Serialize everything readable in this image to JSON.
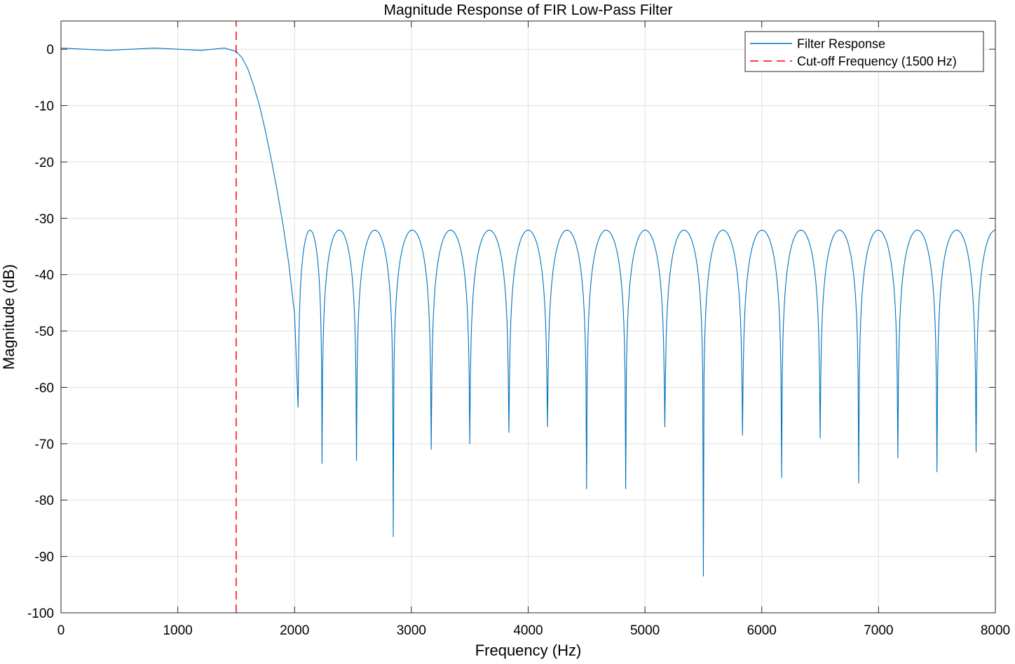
{
  "chart_data": {
    "type": "line",
    "title": "Magnitude Response of FIR Low-Pass Filter",
    "xlabel": "Frequency (Hz)",
    "ylabel": "Magnitude (dB)",
    "xlim": [
      0,
      8000
    ],
    "ylim": [
      -100,
      5
    ],
    "xticks": [
      0,
      1000,
      2000,
      3000,
      4000,
      5000,
      6000,
      7000,
      8000
    ],
    "yticks": [
      0,
      -10,
      -20,
      -30,
      -40,
      -50,
      -60,
      -70,
      -80,
      -90,
      -100
    ],
    "grid": true,
    "legend": {
      "placement": "top-right",
      "entries": [
        {
          "label": "Filter Response",
          "color": "#0072BD",
          "style": "solid"
        },
        {
          "label": "Cut-off Frequency (1500 Hz)",
          "color": "#FF0000",
          "style": "dashed"
        }
      ]
    },
    "series": [
      {
        "name": "Filter Response",
        "color": "#0072BD",
        "passband": {
          "x": [
            0,
            200,
            400,
            600,
            800,
            1000,
            1200,
            1400,
            1500,
            1550,
            1600,
            1650,
            1700,
            1750,
            1800,
            1850,
            1900,
            1950,
            2000,
            2030
          ],
          "y": [
            0.2,
            0.0,
            -0.2,
            0.0,
            0.2,
            0.0,
            -0.2,
            0.2,
            -0.4,
            -1.5,
            -3.5,
            -6.5,
            -10,
            -14.5,
            -19.5,
            -25,
            -31,
            -38,
            -47,
            -63.5
          ]
        },
        "sidelobe_peak_db": -32.1,
        "nulls": [
          {
            "x": 2030,
            "y": -63.5
          },
          {
            "x": 2235,
            "y": -73.5
          },
          {
            "x": 2530,
            "y": -73
          },
          {
            "x": 2845,
            "y": -86.5
          },
          {
            "x": 3170,
            "y": -71
          },
          {
            "x": 3500,
            "y": -70
          },
          {
            "x": 3835,
            "y": -68
          },
          {
            "x": 4165,
            "y": -67
          },
          {
            "x": 4500,
            "y": -78
          },
          {
            "x": 4835,
            "y": -78
          },
          {
            "x": 5170,
            "y": -67
          },
          {
            "x": 5500,
            "y": -93.5
          },
          {
            "x": 5835,
            "y": -68.5
          },
          {
            "x": 6170,
            "y": -76
          },
          {
            "x": 6500,
            "y": -69
          },
          {
            "x": 6830,
            "y": -77
          },
          {
            "x": 7165,
            "y": -72.5
          },
          {
            "x": 7500,
            "y": -75
          },
          {
            "x": 7835,
            "y": -71.5
          }
        ]
      },
      {
        "name": "Cut-off Frequency (1500 Hz)",
        "color": "#FF0000",
        "x": [
          1500,
          1500
        ],
        "y": [
          -100,
          5
        ]
      }
    ]
  }
}
